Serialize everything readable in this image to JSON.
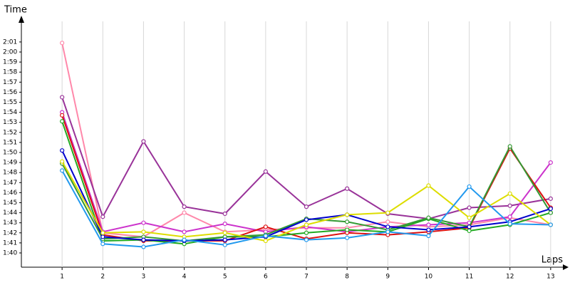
{
  "chart_data": {
    "type": "line",
    "x_label": "Laps",
    "y_label": "Time",
    "x": [
      1,
      2,
      3,
      4,
      5,
      6,
      7,
      8,
      9,
      10,
      11,
      12,
      13
    ],
    "xlim": [
      0,
      13.3
    ],
    "xticks": [
      1,
      2,
      3,
      4,
      5,
      6,
      7,
      8,
      9,
      10,
      11,
      12,
      13
    ],
    "ylim": [
      98.58,
      123.05
    ],
    "yticks": [
      {
        "value": 100,
        "label": "1:40"
      },
      {
        "value": 101,
        "label": "1:41"
      },
      {
        "value": 102,
        "label": "1:42"
      },
      {
        "value": 103,
        "label": "1:43"
      },
      {
        "value": 104,
        "label": "1:44"
      },
      {
        "value": 105,
        "label": "1:45"
      },
      {
        "value": 106,
        "label": "1:46"
      },
      {
        "value": 107,
        "label": "1:47"
      },
      {
        "value": 108,
        "label": "1:48"
      },
      {
        "value": 109,
        "label": "1:49"
      },
      {
        "value": 110,
        "label": "1:50"
      },
      {
        "value": 111,
        "label": "1:51"
      },
      {
        "value": 112,
        "label": "1:52"
      },
      {
        "value": 113,
        "label": "1:53"
      },
      {
        "value": 114,
        "label": "1:54"
      },
      {
        "value": 115,
        "label": "1:55"
      },
      {
        "value": 116,
        "label": "1:56"
      },
      {
        "value": 117,
        "label": "1:57"
      },
      {
        "value": 118,
        "label": "1:58"
      },
      {
        "value": 119,
        "label": "1:59"
      },
      {
        "value": 120,
        "label": "2:00"
      },
      {
        "value": 121,
        "label": "2:01"
      }
    ],
    "grid": true,
    "series": [
      {
        "color": "#ff88aa",
        "values": [
          120.9,
          102.0,
          101.6,
          104.0,
          102.1,
          102.3,
          102.5,
          102.5,
          103.1,
          102.6,
          102.8,
          103.5,
          102.8
        ]
      },
      {
        "color": "#993399",
        "values": [
          115.5,
          103.6,
          111.1,
          104.6,
          103.9,
          108.1,
          104.6,
          106.4,
          103.9,
          103.4,
          104.5,
          104.7,
          105.4
        ]
      },
      {
        "color": "#cc33cc",
        "values": [
          114.0,
          102.1,
          103.0,
          102.1,
          102.9,
          102.1,
          102.6,
          102.1,
          102.6,
          102.8,
          103.0,
          103.6,
          109.0
        ]
      },
      {
        "color": "#dd1111",
        "values": [
          113.7,
          101.8,
          101.2,
          101.2,
          101.2,
          102.6,
          101.4,
          102.0,
          101.8,
          102.1,
          102.5,
          110.4,
          104.5
        ]
      },
      {
        "color": "#22aa22",
        "values": [
          113.1,
          101.2,
          101.3,
          100.9,
          101.6,
          101.6,
          102.0,
          102.3,
          102.1,
          103.4,
          102.2,
          102.8,
          104.0
        ]
      },
      {
        "color": "#339933",
        "values": [
          108.9,
          101.4,
          101.6,
          101.2,
          101.6,
          101.8,
          103.4,
          103.1,
          102.3,
          103.5,
          102.6,
          110.6,
          104.0
        ]
      },
      {
        "color": "#0000cc",
        "values": [
          110.2,
          101.6,
          101.3,
          101.2,
          101.3,
          101.6,
          103.3,
          103.8,
          102.6,
          102.3,
          102.6,
          103.1,
          104.4
        ]
      },
      {
        "color": "#dddd00",
        "values": [
          109.1,
          102.0,
          102.1,
          101.6,
          102.0,
          101.2,
          102.8,
          103.8,
          104.0,
          106.7,
          103.5,
          105.9,
          102.8
        ]
      },
      {
        "color": "#2299ee",
        "values": [
          108.2,
          100.9,
          100.6,
          101.3,
          100.8,
          101.7,
          101.3,
          101.5,
          102.1,
          101.7,
          106.6,
          102.9,
          102.8
        ]
      }
    ]
  }
}
